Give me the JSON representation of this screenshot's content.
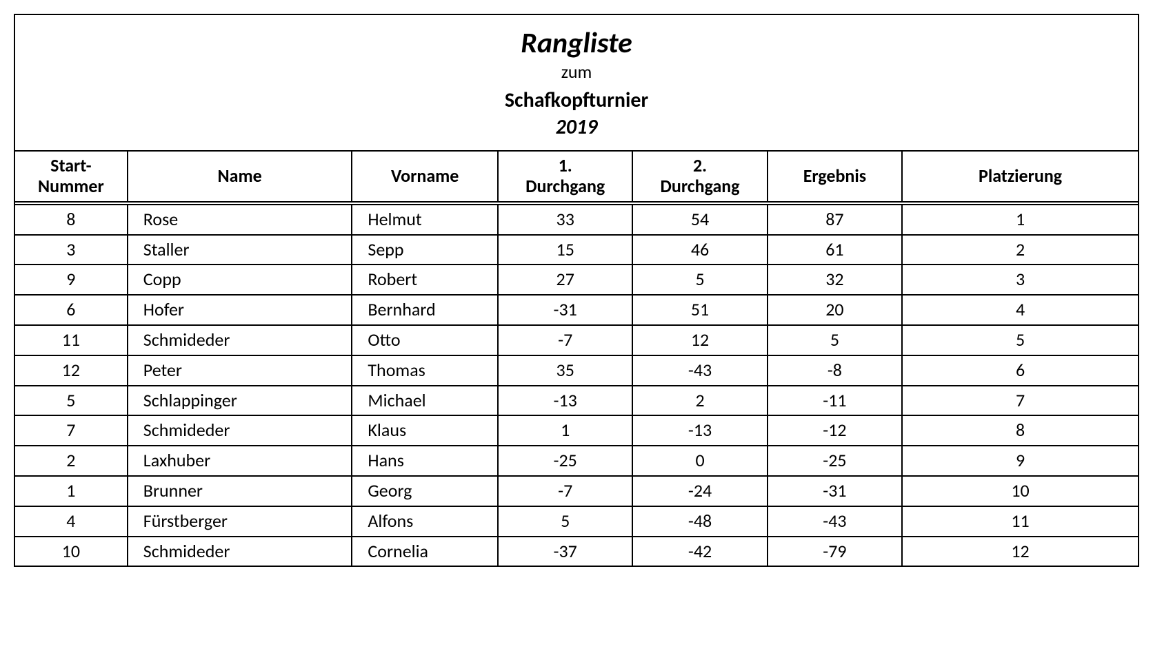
{
  "title": {
    "main": "Rangliste",
    "zum": "zum",
    "event": "Schafkopfturnier",
    "year": "2019"
  },
  "table": {
    "columns": [
      {
        "key": "start",
        "label": "Start-\nNummer",
        "align": "center"
      },
      {
        "key": "name",
        "label": "Name",
        "align": "left"
      },
      {
        "key": "vorname",
        "label": "Vorname",
        "align": "left"
      },
      {
        "key": "d1",
        "label": "1.\nDurchgang",
        "align": "center"
      },
      {
        "key": "d2",
        "label": "2.\nDurchgang",
        "align": "center"
      },
      {
        "key": "ergebnis",
        "label": "Ergebnis",
        "align": "center"
      },
      {
        "key": "platz",
        "label": "Platzierung",
        "align": "center"
      }
    ],
    "rows": [
      {
        "start": "8",
        "name": "Rose",
        "vorname": "Helmut",
        "d1": "33",
        "d2": "54",
        "ergebnis": "87",
        "platz": "1"
      },
      {
        "start": "3",
        "name": "Staller",
        "vorname": "Sepp",
        "d1": "15",
        "d2": "46",
        "ergebnis": "61",
        "platz": "2"
      },
      {
        "start": "9",
        "name": "Copp",
        "vorname": "Robert",
        "d1": "27",
        "d2": "5",
        "ergebnis": "32",
        "platz": "3"
      },
      {
        "start": "6",
        "name": "Hofer",
        "vorname": "Bernhard",
        "d1": "-31",
        "d2": "51",
        "ergebnis": "20",
        "platz": "4"
      },
      {
        "start": "11",
        "name": "Schmideder",
        "vorname": "Otto",
        "d1": "-7",
        "d2": "12",
        "ergebnis": "5",
        "platz": "5"
      },
      {
        "start": "12",
        "name": "Peter",
        "vorname": "Thomas",
        "d1": "35",
        "d2": "-43",
        "ergebnis": "-8",
        "platz": "6"
      },
      {
        "start": "5",
        "name": "Schlappinger",
        "vorname": "Michael",
        "d1": "-13",
        "d2": "2",
        "ergebnis": "-11",
        "platz": "7"
      },
      {
        "start": "7",
        "name": "Schmideder",
        "vorname": "Klaus",
        "d1": "1",
        "d2": "-13",
        "ergebnis": "-12",
        "platz": "8"
      },
      {
        "start": "2",
        "name": "Laxhuber",
        "vorname": "Hans",
        "d1": "-25",
        "d2": "0",
        "ergebnis": "-25",
        "platz": "9"
      },
      {
        "start": "1",
        "name": "Brunner",
        "vorname": "Georg",
        "d1": "-7",
        "d2": "-24",
        "ergebnis": "-31",
        "platz": "10"
      },
      {
        "start": "4",
        "name": "Fürstberger",
        "vorname": "Alfons",
        "d1": "5",
        "d2": "-48",
        "ergebnis": "-43",
        "platz": "11"
      },
      {
        "start": "10",
        "name": "Schmideder",
        "vorname": "Cornelia",
        "d1": "-37",
        "d2": "-42",
        "ergebnis": "-79",
        "platz": "12"
      }
    ]
  }
}
